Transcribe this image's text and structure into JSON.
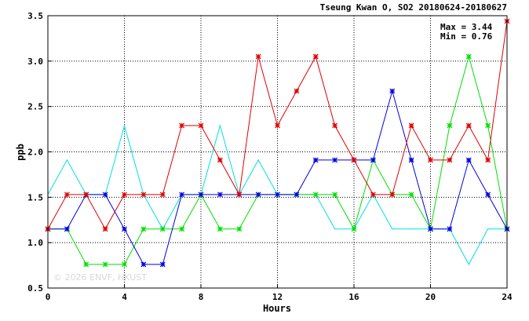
{
  "chart_data": {
    "type": "line",
    "title": "Tseung Kwan O, SO2 20180624-20180627",
    "xlabel": "Hours",
    "ylabel": "ppb",
    "xlim": [
      0,
      24
    ],
    "ylim": [
      0.5,
      3.5
    ],
    "x_ticks": [
      "0",
      "4",
      "8",
      "12",
      "16",
      "20",
      "24"
    ],
    "y_ticks": [
      "0.5",
      "1.0",
      "1.5",
      "2.0",
      "2.5",
      "3.0",
      "3.5"
    ],
    "grid": true,
    "stats": {
      "max_label": "Max = 3.44",
      "min_label": "Min = 0.76"
    },
    "watermark": "© 2026 ENVF, HKUST",
    "x": [
      0,
      1,
      2,
      3,
      4,
      5,
      6,
      7,
      8,
      9,
      10,
      11,
      12,
      13,
      14,
      15,
      16,
      17,
      18,
      19,
      20,
      21,
      22,
      23,
      24
    ],
    "series": [
      {
        "color": "#00e0e0",
        "marker": false,
        "values": [
          1.53,
          1.91,
          1.53,
          1.53,
          2.29,
          1.53,
          1.15,
          1.53,
          1.53,
          2.29,
          1.53,
          1.91,
          1.53,
          1.53,
          1.53,
          1.15,
          1.15,
          1.53,
          1.15,
          1.15,
          1.15,
          1.15,
          0.76,
          1.15,
          1.15
        ]
      },
      {
        "color": "#00e000",
        "marker": true,
        "values": [
          1.15,
          1.15,
          0.76,
          0.76,
          0.76,
          1.15,
          1.15,
          1.15,
          1.53,
          1.15,
          1.15,
          1.53,
          1.53,
          1.53,
          1.53,
          1.53,
          1.15,
          1.91,
          1.53,
          1.53,
          1.15,
          2.29,
          3.05,
          2.29,
          1.15
        ]
      },
      {
        "color": "#0000e0",
        "marker": true,
        "values": [
          1.15,
          1.15,
          1.53,
          1.53,
          1.15,
          0.76,
          0.76,
          1.53,
          1.53,
          1.53,
          1.53,
          1.53,
          1.53,
          1.53,
          1.91,
          1.91,
          1.91,
          1.91,
          2.67,
          1.91,
          1.15,
          1.15,
          1.91,
          1.53,
          1.15
        ]
      },
      {
        "color": "#e00000",
        "marker": true,
        "values": [
          1.15,
          1.53,
          1.53,
          1.15,
          1.53,
          1.53,
          1.53,
          2.29,
          2.29,
          1.91,
          1.53,
          3.05,
          2.29,
          2.67,
          3.05,
          2.29,
          1.91,
          1.53,
          1.53,
          2.29,
          1.91,
          1.91,
          2.29,
          1.91,
          3.44
        ]
      }
    ]
  }
}
